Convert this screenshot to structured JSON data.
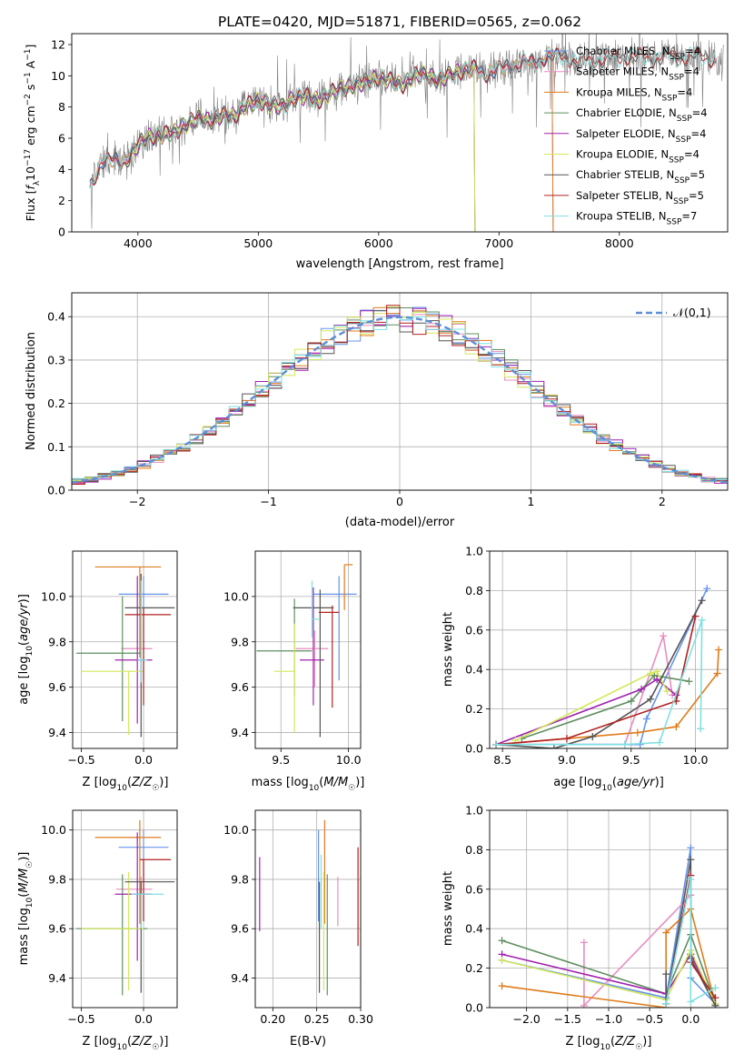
{
  "chart_data": [
    {
      "type": "line",
      "panel": "spectrum",
      "title": "PLATE=0420, MJD=51871, FIBERID=0565, z=0.062",
      "xlabel": "wavelength [Angstrom, rest frame]",
      "ylabel": "Flux [f_λ10⁻¹⁷ erg cm⁻² s⁻¹ A⁻¹]",
      "xlim": [
        3450,
        8900
      ],
      "ylim": [
        0,
        12.7
      ],
      "xticks": [
        4000,
        5000,
        6000,
        7000,
        8000
      ],
      "yticks": [
        0,
        2,
        4,
        6,
        8,
        10,
        12
      ],
      "legend_position": "right",
      "observed": {
        "color": "#808080",
        "x": [
          3600,
          3700,
          3800,
          3900,
          4000,
          4100,
          4200,
          4300,
          4400,
          4500,
          4600,
          4700,
          4800,
          4900,
          5000,
          5100,
          5200,
          5300,
          5400,
          5500,
          5600,
          5700,
          5800,
          5900,
          6000,
          6100,
          6200,
          6300,
          6400,
          6500,
          6600,
          6700,
          6800,
          6900,
          7000,
          7100,
          7200,
          7300,
          7400,
          7500,
          7600,
          7700,
          7800,
          7900,
          8000,
          8100,
          8200,
          8300,
          8400,
          8500,
          8600,
          8700,
          8800
        ],
        "y": [
          3.0,
          4.4,
          4.6,
          4.5,
          5.6,
          6.1,
          6.2,
          6.4,
          6.9,
          7.3,
          7.1,
          7.5,
          7.4,
          8.1,
          8.4,
          8.2,
          8.0,
          8.6,
          8.7,
          8.4,
          8.9,
          9.2,
          9.4,
          9.6,
          9.9,
          9.7,
          9.4,
          10.0,
          10.1,
          9.7,
          10.1,
          10.3,
          10.5,
          10.1,
          10.4,
          10.6,
          10.9,
          10.8,
          11.3,
          11.2,
          11.1,
          10.9,
          11.0,
          11.2,
          11.1,
          11.3,
          11.2,
          11.1,
          11.4,
          11.1,
          11.3,
          11.2,
          11.0
        ],
        "noise_amplitude": 1.4
      },
      "legend": [
        "Chabrier MILES, N_SSP=4",
        "Salpeter MILES, N_SSP=4",
        "Kroupa MILES, N_SSP=4",
        "Chabrier ELODIE, N_SSP=4",
        "Salpeter ELODIE, N_SSP=4",
        "Kroupa ELODIE, N_SSP=4",
        "Chabrier STELIB, N_SSP=5",
        "Salpeter STELIB, N_SSP=5",
        "Kroupa STELIB, N_SSP=7"
      ],
      "legend_labels": [
        {
          "main": "Chabrier MILES, N",
          "sub": "SSP",
          "end": "=4"
        },
        {
          "main": "Salpeter MILES, N",
          "sub": "SSP",
          "end": "=4"
        },
        {
          "main": "Kroupa MILES, N",
          "sub": "SSP",
          "end": "=4"
        },
        {
          "main": "Chabrier ELODIE, N",
          "sub": "SSP",
          "end": "=4"
        },
        {
          "main": "Salpeter ELODIE, N",
          "sub": "SSP",
          "end": "=4"
        },
        {
          "main": "Kroupa ELODIE, N",
          "sub": "SSP",
          "end": "=4"
        },
        {
          "main": "Chabrier STELIB, N",
          "sub": "SSP",
          "end": "=5"
        },
        {
          "main": "Salpeter STELIB, N",
          "sub": "SSP",
          "end": "=5"
        },
        {
          "main": "Kroupa STELIB, N",
          "sub": "SSP",
          "end": "=7"
        }
      ],
      "colors": [
        "#6495ed",
        "#e88dc0",
        "#e07b1a",
        "#5f8f5f",
        "#a020b0",
        "#d4e85a",
        "#555555",
        "#b22222",
        "#7fe0e0"
      ],
      "model_ranges": [
        [
          3600,
          7450
        ],
        [
          3600,
          7450
        ],
        [
          3600,
          7450
        ],
        [
          3900,
          6800
        ],
        [
          3900,
          6800
        ],
        [
          3900,
          6800
        ],
        [
          3600,
          8800
        ],
        [
          3600,
          8800
        ],
        [
          3600,
          8800
        ]
      ]
    },
    {
      "type": "histogram",
      "panel": "residuals",
      "xlabel": "(data-model)/error",
      "ylabel": "Normed distribution",
      "xlim": [
        -2.5,
        2.5
      ],
      "ylim": [
        0,
        0.455
      ],
      "xticks": [
        -2,
        -1,
        0,
        1,
        2
      ],
      "yticks": [
        0.0,
        0.1,
        0.2,
        0.3,
        0.4
      ],
      "bins": {
        "start": -2.5,
        "width": 0.1,
        "count": 50
      },
      "grid": true,
      "legend_position": "top-right",
      "gaussian": {
        "label": "𝒩(0,1)",
        "color": "#5b8fd9",
        "style": "dashed"
      }
    },
    {
      "type": "scatter",
      "panel": "Z-age",
      "xlabel": "Z [log₁₀(Z/Z☉)]",
      "ylabel": "age [log₁₀(age/yr)]",
      "xlim": [
        -0.57,
        0.27
      ],
      "ylim": [
        9.33,
        10.2
      ],
      "xticks": [
        -0.5,
        0.0
      ],
      "yticks": [
        9.4,
        9.6,
        9.8,
        10.0
      ],
      "grid": true,
      "points": [
        {
          "x": 0.0,
          "y": 10.01,
          "xerr": [
            0.2,
            0.2
          ],
          "yerr": [
            0.38,
            0.08
          ]
        },
        {
          "x": -0.02,
          "y": 9.77,
          "xerr": [
            0.16,
            0.09
          ],
          "yerr": [
            0.17,
            0.08
          ]
        },
        {
          "x": -0.03,
          "y": 10.13,
          "xerr": [
            0.36,
            0.17
          ],
          "yerr": [
            0.4,
            0.0
          ]
        },
        {
          "x": -0.17,
          "y": 9.75,
          "xerr": [
            0.37,
            0.15
          ],
          "yerr": [
            0.3,
            0.25
          ]
        },
        {
          "x": -0.05,
          "y": 9.72,
          "xerr": [
            0.18,
            0.12
          ],
          "yerr": [
            0.28,
            0.37
          ]
        },
        {
          "x": -0.12,
          "y": 9.67,
          "xerr": [
            0.38,
            0.12
          ],
          "yerr": [
            0.28,
            0.0
          ]
        },
        {
          "x": -0.02,
          "y": 9.95,
          "xerr": [
            0.13,
            0.27
          ],
          "yerr": [
            0.57,
            0.15
          ]
        },
        {
          "x": 0.0,
          "y": 9.92,
          "xerr": [
            0.15,
            0.22
          ],
          "yerr": [
            0.4,
            0.03
          ]
        },
        {
          "x": -0.02,
          "y": 9.72,
          "xerr": [
            0.03,
            0.05
          ],
          "yerr": [
            0.1,
            0.35
          ]
        }
      ]
    },
    {
      "type": "scatter",
      "panel": "mass-age",
      "xlabel": "mass [log₁₀(M/M☉)]",
      "ylabel": "",
      "xlim": [
        9.31,
        10.09
      ],
      "ylim": [
        9.33,
        10.2
      ],
      "xticks": [
        9.5,
        10.0
      ],
      "yticks": [
        9.4,
        9.6,
        9.8,
        10.0
      ],
      "grid": true,
      "points": [
        {
          "x": 9.93,
          "y": 10.01,
          "xerr": [
            0.19,
            0.13
          ],
          "yerr": [
            0.38,
            0.08
          ]
        },
        {
          "x": 9.75,
          "y": 9.77,
          "xerr": [
            0.14,
            0.1
          ],
          "yerr": [
            0.17,
            0.08
          ]
        },
        {
          "x": 9.97,
          "y": 10.14,
          "xerr": [
            0.0,
            0.06
          ],
          "yerr": [
            0.2,
            0.0
          ]
        },
        {
          "x": 9.6,
          "y": 9.76,
          "xerr": [
            0.28,
            0.13
          ],
          "yerr": [
            0.2,
            0.23
          ]
        },
        {
          "x": 9.74,
          "y": 9.72,
          "xerr": [
            0.1,
            0.08
          ],
          "yerr": [
            0.2,
            0.32
          ]
        },
        {
          "x": 9.6,
          "y": 9.67,
          "xerr": [
            0.15,
            0.0
          ],
          "yerr": [
            0.27,
            0.21
          ]
        },
        {
          "x": 9.79,
          "y": 9.95,
          "xerr": [
            0.2,
            0.1
          ],
          "yerr": [
            0.57,
            0.08
          ]
        },
        {
          "x": 9.88,
          "y": 9.93,
          "xerr": [
            0.1,
            0.05
          ],
          "yerr": [
            0.42,
            0.03
          ]
        },
        {
          "x": 9.73,
          "y": 9.9,
          "xerr": [
            0.0,
            0.05
          ],
          "yerr": [
            0.08,
            0.17
          ]
        }
      ]
    },
    {
      "type": "line",
      "panel": "age-massweight",
      "xlabel": "age [log₁₀(age/yr)]",
      "ylabel": "mass weight",
      "xlim": [
        8.4,
        10.25
      ],
      "ylim": [
        0,
        1.0
      ],
      "xticks": [
        8.5,
        9.0,
        9.5,
        10.0
      ],
      "yticks": [
        0.0,
        0.2,
        0.4,
        0.6,
        0.8,
        1.0
      ],
      "grid": true,
      "series": [
        {
          "x": [
            8.45,
            9.57,
            9.62,
            10.09
          ],
          "y": [
            0.02,
            0.02,
            0.15,
            0.81
          ]
        },
        {
          "x": [
            8.45,
            9.45,
            9.75,
            9.82
          ],
          "y": [
            0.02,
            0.02,
            0.57,
            0.27
          ]
        },
        {
          "x": [
            8.45,
            9.55,
            9.85,
            10.17,
            10.18
          ],
          "y": [
            0.02,
            0.08,
            0.11,
            0.38,
            0.5
          ]
        },
        {
          "x": [
            8.65,
            9.5,
            9.68,
            9.95
          ],
          "y": [
            0.05,
            0.24,
            0.37,
            0.34
          ]
        },
        {
          "x": [
            8.45,
            9.58,
            9.7,
            9.85
          ],
          "y": [
            0.02,
            0.3,
            0.35,
            0.27
          ]
        },
        {
          "x": [
            8.6,
            9.65,
            9.7,
            9.78
          ],
          "y": [
            0.04,
            0.38,
            0.39,
            0.29
          ]
        },
        {
          "x": [
            8.45,
            8.9,
            9.2,
            9.65,
            10.05
          ],
          "y": [
            0.02,
            0.0,
            0.06,
            0.25,
            0.75
          ]
        },
        {
          "x": [
            8.45,
            9.0,
            9.85,
            10.0
          ],
          "y": [
            0.02,
            0.05,
            0.24,
            0.67
          ]
        },
        {
          "x": [
            8.45,
            9.45,
            9.72,
            10.05,
            10.04
          ],
          "y": [
            0.02,
            0.02,
            0.03,
            0.65,
            0.1
          ]
        }
      ]
    },
    {
      "type": "scatter",
      "panel": "Z-mass",
      "xlabel": "Z [log₁₀(Z/Z☉)]",
      "ylabel": "mass [log₁₀(M/M☉)]",
      "xlim": [
        -0.57,
        0.27
      ],
      "ylim": [
        9.28,
        10.08
      ],
      "xticks": [
        -0.5,
        0.0
      ],
      "yticks": [
        9.4,
        9.6,
        9.8,
        10.0
      ],
      "grid": true,
      "points": [
        {
          "x": 0.0,
          "y": 9.93,
          "xerr": [
            0.2,
            0.2
          ],
          "yerr": [
            0.3,
            0.07
          ]
        },
        {
          "x": -0.02,
          "y": 9.76,
          "xerr": [
            0.2,
            0.09
          ],
          "yerr": [
            0.15,
            0.05
          ]
        },
        {
          "x": -0.03,
          "y": 9.97,
          "xerr": [
            0.36,
            0.17
          ],
          "yerr": [
            0.35,
            0.07
          ]
        },
        {
          "x": -0.17,
          "y": 9.6,
          "xerr": [
            0.37,
            0.2
          ],
          "yerr": [
            0.27,
            0.22
          ]
        },
        {
          "x": -0.05,
          "y": 9.74,
          "xerr": [
            0.18,
            0.12
          ],
          "yerr": [
            0.27,
            0.25
          ]
        },
        {
          "x": -0.12,
          "y": 9.6,
          "xerr": [
            0.38,
            0.12
          ],
          "yerr": [
            0.25,
            0.23
          ]
        },
        {
          "x": -0.02,
          "y": 9.79,
          "xerr": [
            0.13,
            0.27
          ],
          "yerr": [
            0.45,
            0.0
          ]
        },
        {
          "x": 0.0,
          "y": 9.88,
          "xerr": [
            0.03,
            0.22
          ],
          "yerr": [
            0.25,
            0.0
          ]
        },
        {
          "x": -0.02,
          "y": 9.74,
          "xerr": [
            0.08,
            0.18
          ],
          "yerr": [
            0.14,
            0.0
          ]
        }
      ]
    },
    {
      "type": "scatter",
      "panel": "EBV-mass",
      "xlabel": "E(B-V)",
      "ylabel": "",
      "xlim": [
        0.18,
        0.3
      ],
      "ylim": [
        9.28,
        10.08
      ],
      "xticks": [
        0.2,
        0.25,
        0.3
      ],
      "yticks": [
        9.4,
        9.6,
        9.8,
        10.0
      ],
      "grid": true,
      "points": [
        {
          "x": 0.252,
          "y": 9.93,
          "xerr": [
            0,
            0
          ],
          "yerr": [
            0.3,
            0.07
          ]
        },
        {
          "x": 0.274,
          "y": 9.76,
          "xerr": [
            0,
            0
          ],
          "yerr": [
            0.15,
            0.05
          ]
        },
        {
          "x": 0.259,
          "y": 9.97,
          "xerr": [
            0,
            0
          ],
          "yerr": [
            0.35,
            0.07
          ]
        },
        {
          "x": 0.262,
          "y": 9.6,
          "xerr": [
            0,
            0
          ],
          "yerr": [
            0.27,
            0.22
          ]
        },
        {
          "x": 0.185,
          "y": 9.74,
          "xerr": [
            0,
            0
          ],
          "yerr": [
            0.15,
            0.15
          ]
        },
        {
          "x": 0.258,
          "y": 9.6,
          "xerr": [
            0,
            0
          ],
          "yerr": [
            0.25,
            0.23
          ]
        },
        {
          "x": 0.253,
          "y": 9.79,
          "xerr": [
            0,
            0
          ],
          "yerr": [
            0.45,
            0.0
          ]
        },
        {
          "x": 0.297,
          "y": 9.73,
          "xerr": [
            0,
            0
          ],
          "yerr": [
            0.2,
            0.2
          ]
        },
        {
          "x": 0.255,
          "y": 9.74,
          "xerr": [
            0,
            0
          ],
          "yerr": [
            0.14,
            0.16
          ]
        }
      ]
    },
    {
      "type": "line",
      "panel": "Z-massweight",
      "xlabel": "Z [log₁₀(Z/Z☉)]",
      "ylabel": "mass weight",
      "xlim": [
        -2.45,
        0.45
      ],
      "ylim": [
        0,
        1.0
      ],
      "xticks": [
        -2.0,
        -1.5,
        -1.0,
        -0.5,
        0.0
      ],
      "yticks": [
        0.0,
        0.2,
        0.4,
        0.6,
        0.8,
        1.0
      ],
      "grid": true,
      "series": [
        {
          "x": [
            -2.3,
            -0.3,
            0.0,
            0.0,
            0.3
          ],
          "y": [
            0.24,
            0.05,
            0.81,
            0.15,
            0.02
          ]
        },
        {
          "x": [
            -1.3,
            -1.3,
            0.0,
            0.0,
            0.3
          ],
          "y": [
            0.33,
            0.01,
            0.57,
            0.27,
            0.02
          ]
        },
        {
          "x": [
            -2.3,
            -0.3,
            -0.3,
            0.0,
            0.3
          ],
          "y": [
            0.11,
            0.0,
            0.38,
            0.5,
            0.02
          ]
        },
        {
          "x": [
            -2.3,
            -0.3,
            0.0,
            0.3
          ],
          "y": [
            0.34,
            0.07,
            0.37,
            0.02
          ]
        },
        {
          "x": [
            -2.3,
            -0.3,
            0.0,
            0.3
          ],
          "y": [
            0.27,
            0.07,
            0.27,
            0.02
          ]
        },
        {
          "x": [
            -2.3,
            -0.3,
            0.0,
            0.3
          ],
          "y": [
            0.24,
            0.04,
            0.29,
            0.02
          ]
        },
        {
          "x": [
            -0.3,
            -0.3,
            0.0,
            0.0,
            0.3
          ],
          "y": [
            0.17,
            0.02,
            0.75,
            0.25,
            0.01
          ]
        },
        {
          "x": [
            -0.3,
            -0.3,
            0.0,
            0.0,
            0.3
          ],
          "y": [
            0.02,
            0.02,
            0.67,
            0.23,
            0.05
          ]
        },
        {
          "x": [
            -0.3,
            0.0,
            0.0,
            0.3
          ],
          "y": [
            0.02,
            0.65,
            0.03,
            0.1
          ]
        }
      ]
    }
  ]
}
